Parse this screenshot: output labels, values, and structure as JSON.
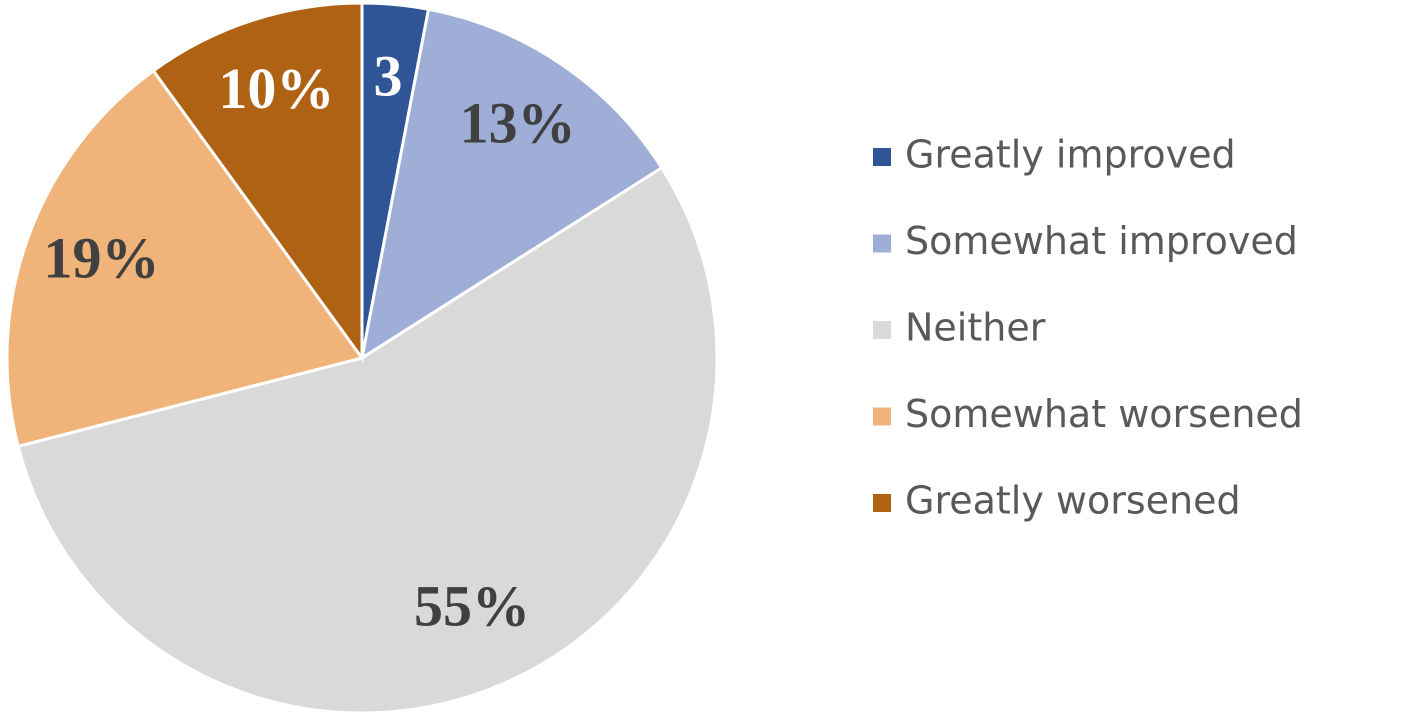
{
  "chart_data": {
    "type": "pie",
    "categories": [
      "Greatly improved",
      "Somewhat improved",
      "Neither",
      "Somewhat worsened",
      "Greatly worsened"
    ],
    "values": [
      3,
      13,
      55,
      19,
      10
    ],
    "value_labels": [
      "3",
      "13%",
      "55%",
      "19%",
      "10%"
    ],
    "colors": [
      "#2f5597",
      "#9eaed6",
      "#d9d9d9",
      "#f0b47a",
      "#b06214"
    ],
    "legend": "right"
  }
}
